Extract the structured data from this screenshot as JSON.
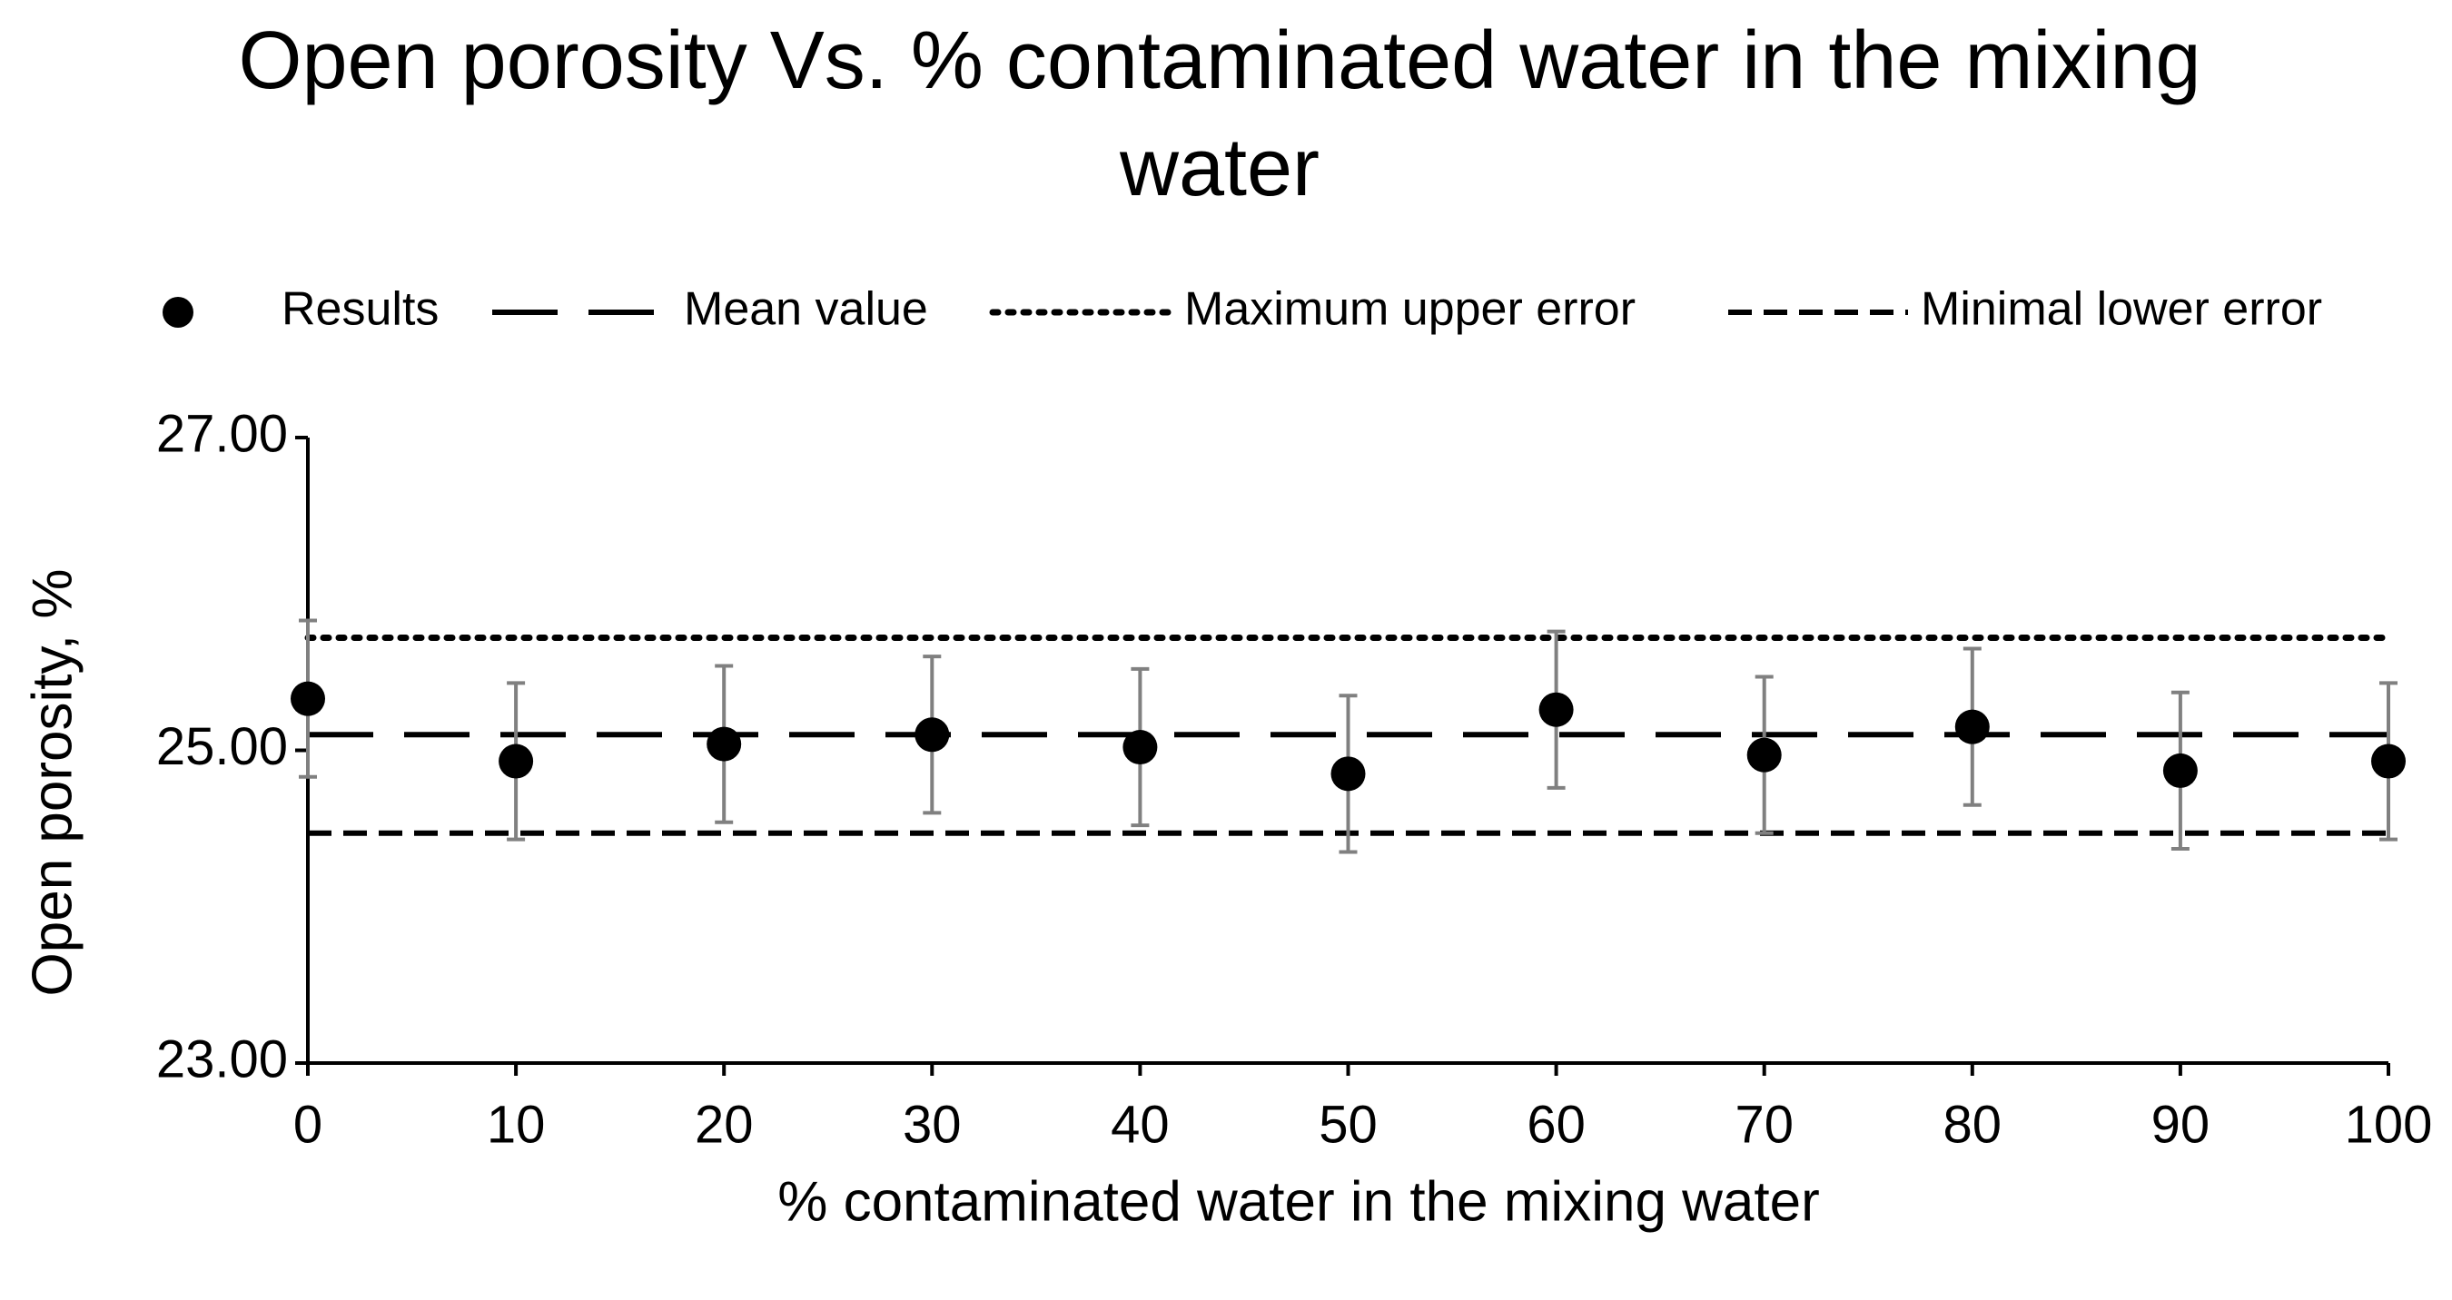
{
  "chart_data": {
    "type": "scatter",
    "title": "Open porosity Vs. % contaminated water in the mixing water",
    "x_label": "% contaminated water in the mixing water",
    "y_label": "Open porosity, %",
    "xlim": [
      0,
      100
    ],
    "xticks": [
      0,
      10,
      20,
      30,
      40,
      50,
      60,
      70,
      80,
      90,
      100
    ],
    "ylim": [
      23,
      27
    ],
    "yticks": [
      {
        "value": 23,
        "label": "23.00"
      },
      {
        "value": 25,
        "label": "25.00"
      },
      {
        "value": 27,
        "label": "27.00"
      }
    ],
    "series": [
      {
        "name": "Results",
        "kind": "marker",
        "color": "#000000",
        "x": [
          0,
          10,
          20,
          30,
          40,
          50,
          60,
          70,
          80,
          90,
          100
        ],
        "values": [
          25.33,
          24.93,
          25.04,
          25.1,
          25.02,
          24.85,
          25.26,
          24.97,
          25.15,
          24.87,
          24.93
        ],
        "errors": [
          0.5,
          0.5,
          0.5,
          0.5,
          0.5,
          0.5,
          0.5,
          0.5,
          0.5,
          0.5,
          0.5
        ],
        "error_color": "#808080"
      },
      {
        "name": "Mean value",
        "kind": "line",
        "dash": "long",
        "color": "#000000",
        "x": [
          0,
          100
        ],
        "values": [
          25.1,
          25.1
        ]
      },
      {
        "name": "Maximum upper error",
        "kind": "line",
        "dash": "dot",
        "color": "#000000",
        "x": [
          0,
          100
        ],
        "values": [
          25.72,
          25.72
        ]
      },
      {
        "name": "Minimal lower error",
        "kind": "line",
        "dash": "short",
        "color": "#000000",
        "x": [
          0,
          100
        ],
        "values": [
          24.47,
          24.47
        ]
      }
    ]
  }
}
